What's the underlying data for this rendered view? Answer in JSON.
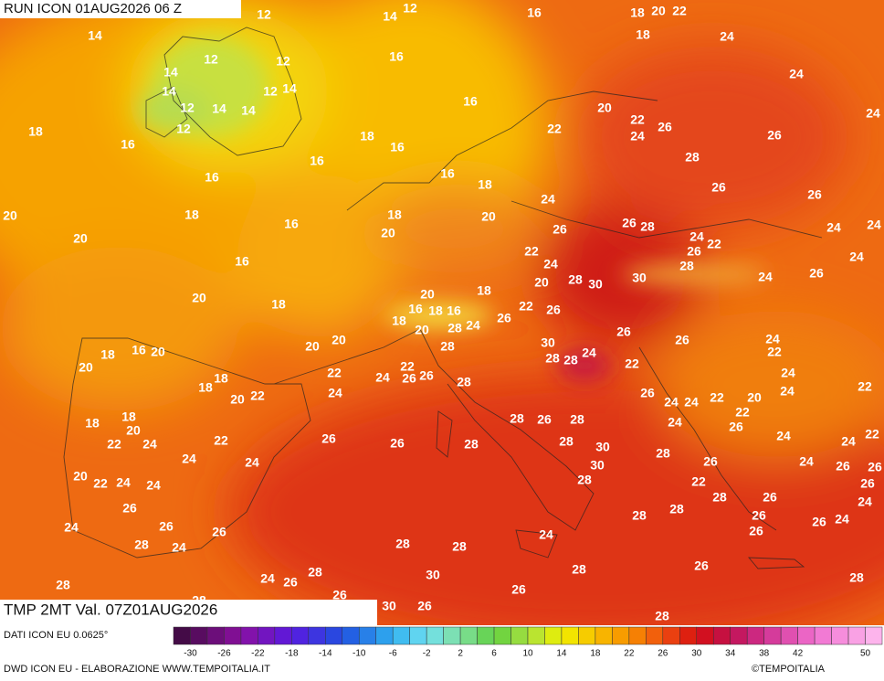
{
  "header": {
    "title": "RUN ICON 01AUG2026 06 Z"
  },
  "map": {
    "variable": "TMP 2MT Val. 07Z01AUG2026",
    "labels": [
      12,
      14,
      12,
      16,
      18,
      20,
      22,
      14,
      18,
      24,
      12,
      12,
      14,
      16,
      24,
      14,
      14,
      12,
      12,
      14,
      14,
      12,
      16,
      20,
      24,
      22,
      26,
      18,
      16,
      18,
      16,
      22,
      24,
      26,
      16,
      28,
      16,
      16,
      18,
      26,
      20,
      18,
      16,
      18,
      24,
      20,
      26,
      20,
      20,
      26,
      26,
      28,
      24,
      24,
      22,
      24,
      22,
      26,
      16,
      24,
      24,
      28,
      20,
      18,
      28,
      30,
      30,
      26,
      24,
      20,
      18,
      20,
      16,
      18,
      16,
      22,
      26,
      18,
      20,
      28,
      24,
      26,
      18,
      16,
      20,
      20,
      20,
      26,
      26,
      24,
      22,
      20,
      18,
      22,
      24,
      22,
      26,
      26,
      28,
      30,
      28,
      28,
      24,
      22,
      24,
      18,
      20,
      22,
      24,
      28,
      26,
      24,
      24,
      22,
      20,
      24,
      22,
      18,
      18,
      20,
      24,
      22,
      26,
      22,
      24,
      22,
      26,
      26,
      28,
      28,
      26,
      28,
      28,
      30,
      24,
      24,
      22,
      24,
      28,
      26,
      24,
      20,
      22,
      24,
      24,
      30,
      28,
      22,
      24,
      26,
      26,
      26,
      26,
      28,
      26,
      24,
      28,
      28,
      26,
      26,
      24,
      26,
      26,
      24,
      26,
      24,
      28,
      28,
      28,
      24,
      26,
      28,
      30,
      28,
      24,
      26,
      28,
      26,
      28,
      26,
      30,
      26,
      28,
      28,
      28
    ]
  },
  "colorbar": {
    "source": "DATI ICON EU 0.0625°",
    "ticks": [
      -30,
      -26,
      -22,
      -18,
      -14,
      -10,
      -6,
      -2,
      2,
      6,
      10,
      14,
      18,
      22,
      26,
      30,
      34,
      38,
      42,
      50
    ]
  },
  "footer": {
    "credit": "DWD ICON EU - ELABORAZIONE WWW.TEMPOITALIA.IT",
    "copyright": "©TEMPOITALIA"
  }
}
